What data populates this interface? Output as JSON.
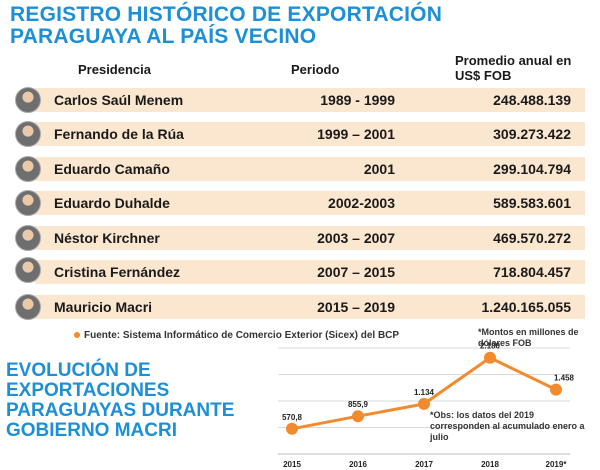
{
  "title": "REGISTRO HISTÓRICO DE EXPORTACIÓN PARAGUAYA AL PAÍS VECINO",
  "table": {
    "headers": {
      "presidency": "Presidencia",
      "period": "Periodo",
      "average": "Promedio anual en US$ FOB"
    },
    "rows": [
      {
        "name": "Carlos Saúl Menem",
        "period": "1989 - 1999",
        "average": "248.488.139"
      },
      {
        "name": "Fernando de la Rúa",
        "period": "1999 – 2001",
        "average": "309.273.422"
      },
      {
        "name": "Eduardo Camaño",
        "period": "2001",
        "average": "299.104.794"
      },
      {
        "name": "Eduardo Duhalde",
        "period": "2002-2003",
        "average": "589.583.601"
      },
      {
        "name": "Néstor Kirchner",
        "period": "2003 – 2007",
        "average": "469.570.272"
      },
      {
        "name": "Cristina Fernández",
        "period": "2007 – 2015",
        "average": "718.804.457"
      },
      {
        "name": "Mauricio Macri",
        "period": "2015 – 2019",
        "average": "1.240.165.055"
      }
    ]
  },
  "source": "Fuente: Sistema Informático de Comercio Exterior (Sicex) del BCP",
  "subtitle": "EVOLUCIÓN DE EXPORTACIONES PARAGUAYAS DURANTE GOBIERNO MACRI",
  "note_units": "*Montos en millones de dólares FOB",
  "note_obs": "*Obs: los datos del 2019 corresponden al acumulado enero a julio",
  "colors": {
    "accent": "#1d8fd6",
    "line": "#f28a2e",
    "row": "#fbe6cf"
  },
  "chart_data": {
    "type": "line",
    "categories": [
      "2015",
      "2016",
      "2017",
      "2018",
      "2019*"
    ],
    "values": [
      570.8,
      855.9,
      1134,
      2180,
      1458
    ],
    "labels": [
      "570,8",
      "855,9",
      "1.134",
      "2.180",
      "1.458"
    ],
    "ylim": [
      0,
      2400
    ],
    "grid": true
  }
}
